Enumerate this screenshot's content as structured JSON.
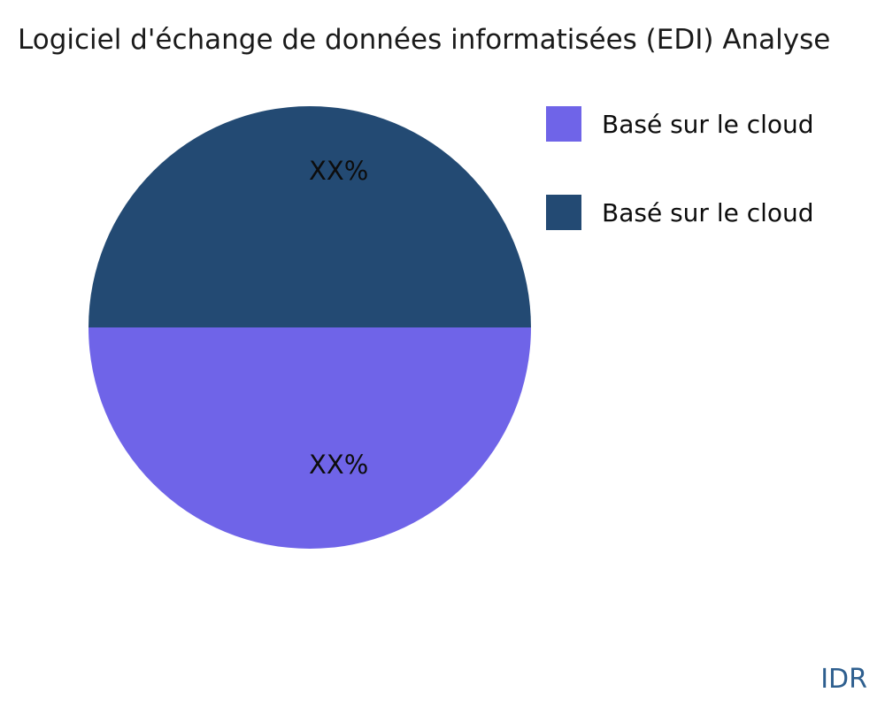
{
  "title": "Logiciel d'échange de données informatisées (EDI) Analyse",
  "watermark": "IDR",
  "colors": {
    "slice_cloud_purple": "#6F64E8",
    "slice_cloud_navy": "#234A73",
    "watermark_text": "#2E5F8F",
    "title_text": "#1a1a1a",
    "background": "#ffffff"
  },
  "legend": {
    "items": [
      {
        "label": "Basé sur le cloud",
        "color": "#6F64E8"
      },
      {
        "label": "Basé sur le cloud",
        "color": "#234A73"
      }
    ]
  },
  "chart_data": {
    "type": "pie",
    "title": "Logiciel d'échange de données informatisées (EDI) Analyse",
    "labels": [
      "Basé sur le cloud",
      "Basé sur le cloud"
    ],
    "values": [
      50,
      50
    ],
    "value_labels": [
      "XX%",
      "XX%"
    ],
    "colors": [
      "#6F64E8",
      "#234A73"
    ],
    "legend_position": "right",
    "start_angle_deg": 0,
    "direction": "clockwise"
  }
}
